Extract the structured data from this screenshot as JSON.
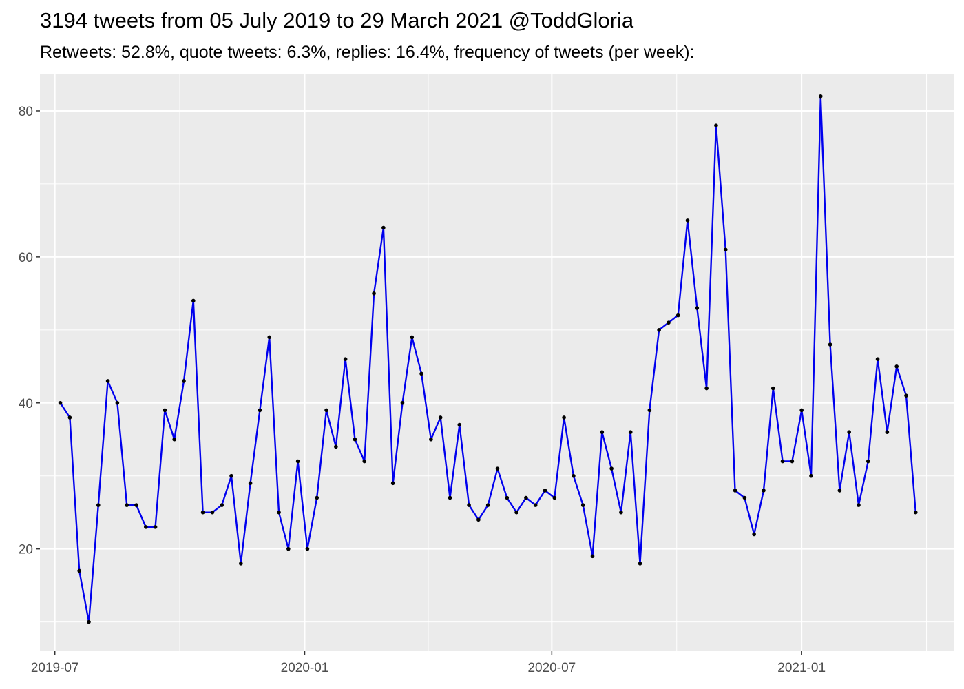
{
  "title": "3194 tweets from 05 July 2019 to 29 March 2021 @ToddGloria",
  "subtitle": "Retweets: 52.8%, quote tweets: 6.3%, replies: 16.4%, frequency of tweets (per week):",
  "chart_data": {
    "type": "line",
    "title": "3194 tweets from 05 July 2019 to 29 March 2021 @ToddGloria",
    "subtitle": "Retweets: 52.8%, quote tweets: 6.3%, replies: 16.4%, frequency of tweets (per week):",
    "xlabel": "",
    "ylabel": "",
    "x_ticks": [
      "2019-07",
      "2020-01",
      "2020-07",
      "2021-01"
    ],
    "y_ticks": [
      20,
      40,
      60,
      80
    ],
    "ylim": [
      6,
      85
    ],
    "xlim": [
      "2019-06-20",
      "2021-04-23"
    ],
    "grid": true,
    "colors": {
      "line": "#0000ee",
      "points": "#000000",
      "panel": "#ebebeb",
      "grid": "#ffffff"
    },
    "series": [
      {
        "x": [
          "2019-07-05",
          "2019-07-12",
          "2019-07-19",
          "2019-07-26",
          "2019-08-02",
          "2019-08-09",
          "2019-08-16",
          "2019-08-23",
          "2019-08-30",
          "2019-09-06",
          "2019-09-13",
          "2019-09-20",
          "2019-09-27",
          "2019-10-04",
          "2019-10-11",
          "2019-10-18",
          "2019-10-25",
          "2019-11-01",
          "2019-11-08",
          "2019-11-15",
          "2019-11-22",
          "2019-11-29",
          "2019-12-06",
          "2019-12-13",
          "2019-12-20",
          "2019-12-27",
          "2020-01-03",
          "2020-01-10",
          "2020-01-17",
          "2020-01-24",
          "2020-01-31",
          "2020-02-07",
          "2020-02-14",
          "2020-02-21",
          "2020-02-28",
          "2020-03-06",
          "2020-03-13",
          "2020-03-20",
          "2020-03-27",
          "2020-04-03",
          "2020-04-10",
          "2020-04-17",
          "2020-04-24",
          "2020-05-01",
          "2020-05-08",
          "2020-05-15",
          "2020-05-22",
          "2020-05-29",
          "2020-06-05",
          "2020-06-12",
          "2020-06-19",
          "2020-06-26",
          "2020-07-03",
          "2020-07-10",
          "2020-07-17",
          "2020-07-24",
          "2020-07-31",
          "2020-08-07",
          "2020-08-14",
          "2020-08-21",
          "2020-08-28",
          "2020-09-04",
          "2020-09-11",
          "2020-09-18",
          "2020-09-25",
          "2020-10-02",
          "2020-10-09",
          "2020-10-16",
          "2020-10-23",
          "2020-10-30",
          "2020-11-06",
          "2020-11-13",
          "2020-11-20",
          "2020-11-27",
          "2020-12-04",
          "2020-12-11",
          "2020-12-18",
          "2020-12-25",
          "2021-01-01",
          "2021-01-08",
          "2021-01-15",
          "2021-01-22",
          "2021-01-29",
          "2021-02-05",
          "2021-02-12",
          "2021-02-19",
          "2021-02-26",
          "2021-03-05",
          "2021-03-12",
          "2021-03-19",
          "2021-03-26"
        ],
        "values": [
          40,
          38,
          17,
          10,
          26,
          43,
          40,
          26,
          26,
          23,
          23,
          39,
          35,
          43,
          54,
          25,
          25,
          26,
          30,
          18,
          29,
          39,
          49,
          25,
          20,
          32,
          20,
          27,
          39,
          34,
          46,
          35,
          32,
          55,
          64,
          29,
          40,
          49,
          44,
          35,
          38,
          27,
          37,
          26,
          24,
          26,
          31,
          27,
          25,
          27,
          26,
          28,
          27,
          38,
          30,
          26,
          19,
          36,
          31,
          25,
          36,
          18,
          39,
          50,
          51,
          52,
          65,
          53,
          42,
          78,
          61,
          28,
          27,
          22,
          28,
          42,
          32,
          32,
          39,
          30,
          82,
          48,
          28,
          36,
          26,
          32,
          46,
          36,
          45,
          41,
          25
        ]
      }
    ]
  }
}
